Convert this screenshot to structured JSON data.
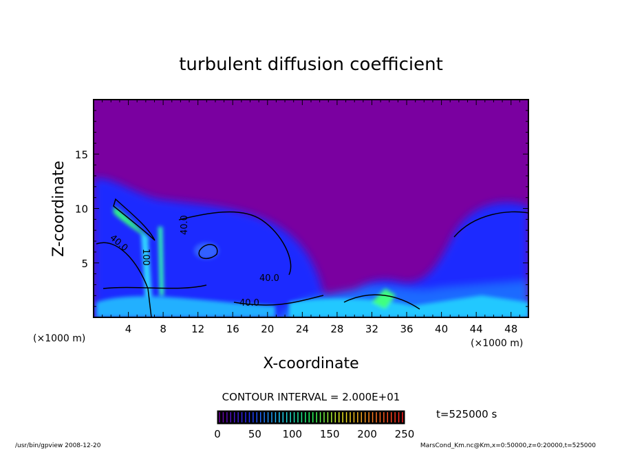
{
  "chart_data": {
    "type": "heatmap",
    "title": "turbulent diffusion coefficient",
    "xlabel": "X-coordinate",
    "ylabel": "Z-coordinate",
    "x_unit": "(×1000 m)",
    "z_unit": "(×1000 m)",
    "xlim": [
      0,
      50
    ],
    "ylim": [
      0,
      20
    ],
    "x_ticks": [
      4,
      8,
      12,
      16,
      20,
      24,
      28,
      32,
      36,
      40,
      44,
      48
    ],
    "y_ticks": [
      5,
      10,
      15
    ],
    "contour_interval": "CONTOUR INTERVAL = 2.000E+01",
    "contour_labels": [
      "40.0",
      "40.0",
      "40.0",
      "40.0",
      "40.0",
      "100"
    ],
    "colorbar": {
      "range": [
        0,
        250
      ],
      "ticks": [
        0,
        50,
        100,
        150,
        200,
        250
      ],
      "colormap": "rainbow",
      "colors": [
        "#7000a0",
        "#2030ff",
        "#20d0ff",
        "#20ff60",
        "#f0f020",
        "#ff8020",
        "#ff2020"
      ]
    },
    "time_label": "t=525000 s",
    "background_color": "#7a00a0"
  },
  "footer": {
    "left": "/usr/bin/gpview  2008-12-20",
    "right": "MarsCond_Km.nc@Km,x=0:50000,z=0:20000,t=525000"
  }
}
